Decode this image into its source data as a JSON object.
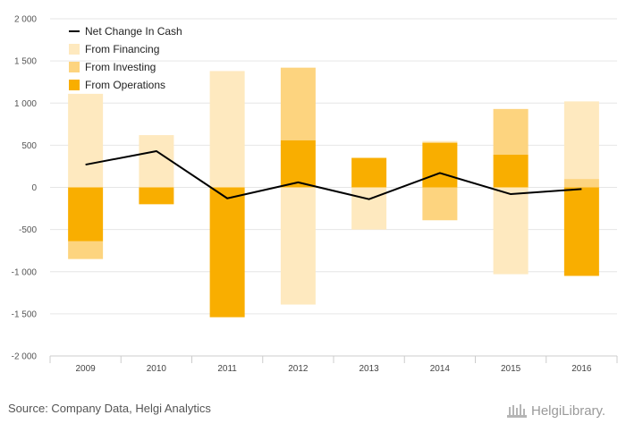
{
  "chart_data": {
    "type": "bar",
    "stacked": true,
    "categories": [
      "2009",
      "2010",
      "2011",
      "2012",
      "2013",
      "2014",
      "2015",
      "2016"
    ],
    "series": [
      {
        "name": "From Operations",
        "kind": "bar",
        "color": "#f9ae00",
        "values": [
          -640,
          -200,
          -1540,
          560,
          350,
          530,
          390,
          -1050
        ]
      },
      {
        "name": "From Investing",
        "kind": "bar",
        "color": "#fdd47f",
        "values": [
          -210,
          0,
          0,
          860,
          0,
          -390,
          540,
          100
        ]
      },
      {
        "name": "From Financing",
        "kind": "bar",
        "color": "#fee9bf",
        "values": [
          1110,
          620,
          1380,
          -1390,
          -500,
          20,
          -1030,
          920
        ]
      },
      {
        "name": "Net Change In Cash",
        "kind": "line",
        "color": "#000000",
        "values": [
          270,
          430,
          -130,
          60,
          -140,
          170,
          -80,
          -20
        ]
      }
    ],
    "ylim": [
      -2000,
      2000
    ],
    "yticks": [
      2000,
      1500,
      1000,
      500,
      0,
      -500,
      -1000,
      -1500,
      -2000
    ],
    "ytick_labels": [
      "2 000",
      "1 500",
      "1 000",
      "500",
      "0",
      "-500",
      "-1 000",
      "-1 500",
      "-2 000"
    ],
    "grid": true,
    "legend": {
      "position": "top-left",
      "entries": [
        "Net Change In Cash",
        "From Financing",
        "From Investing",
        "From Operations"
      ]
    },
    "title": "",
    "xlabel": "",
    "ylabel": ""
  },
  "footer": {
    "source": "Source: Company Data, Helgi Analytics",
    "brand": "HelgiLibrary."
  },
  "colors": {
    "grid": "#e6e6e6",
    "axis": "#cccccc"
  }
}
